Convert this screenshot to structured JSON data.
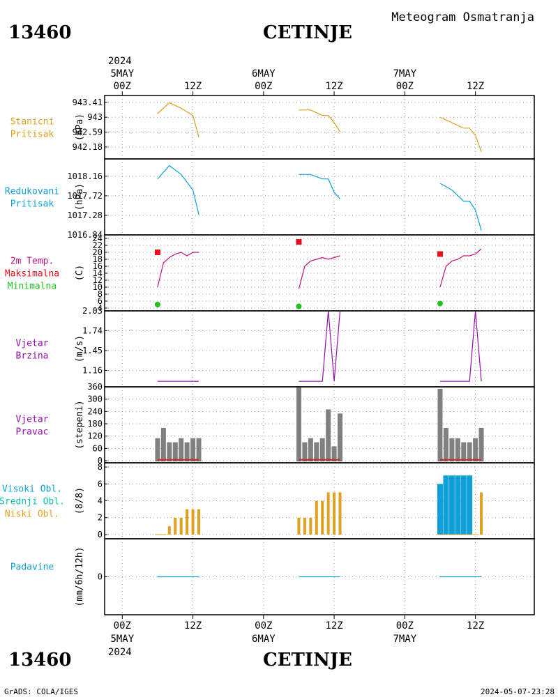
{
  "header": {
    "station_id": "13460",
    "station_name": "CETINJE",
    "chart_title": "Meteogram Osmatranja",
    "footer_left": "GrADS: COLA/IGES",
    "footer_right": "2024-05-07-23:28"
  },
  "time_axis": {
    "top_year": "2024",
    "bottom_year": "2024",
    "days": [
      "5MAY",
      "6MAY",
      "7MAY"
    ],
    "ticks": [
      {
        "hour": 0,
        "label": "00Z"
      },
      {
        "hour": 12,
        "label": "12Z"
      },
      {
        "hour": 24,
        "label": "00Z"
      },
      {
        "hour": 36,
        "label": "12Z"
      },
      {
        "hour": 48,
        "label": "00Z"
      },
      {
        "hour": 60,
        "label": "12Z"
      }
    ],
    "range_hours": [
      -3,
      70
    ]
  },
  "colors": {
    "pressure": "#e0a020",
    "reduced": "#10a0d8",
    "temp": "#c0107a",
    "tmax": "#e8101c",
    "tmin": "#20c020",
    "wind": "#9010a8",
    "winddir_bar": "#808080",
    "winddir_line": "#c82020",
    "high_cloud": "#10a0d8",
    "mid_cloud": "#10c0b0",
    "low_cloud": "#e0a020",
    "precip": "#10a0c8",
    "label_wind": "#9010a8",
    "label_high": "#10a0d8",
    "label_mid": "#10c0b0"
  },
  "chart_data": [
    {
      "type": "line",
      "panel": "station_pressure",
      "labels": [
        "Stanicni",
        "Pritisak"
      ],
      "ylabel": "(hPa)",
      "yticks": [
        942.18,
        942.59,
        943,
        943.41
      ],
      "ylim": [
        941.85,
        943.6
      ],
      "x": [
        6,
        8,
        10,
        12,
        13,
        30,
        32,
        34,
        35,
        36,
        37,
        54,
        56,
        58,
        59,
        60,
        61
      ],
      "values": [
        943.1,
        943.4,
        943.25,
        943.05,
        942.45,
        943.2,
        943.2,
        943.05,
        943.05,
        942.85,
        942.6,
        943,
        942.85,
        942.7,
        942.7,
        942.5,
        942.05
      ],
      "segments": [
        5,
        6,
        6
      ]
    },
    {
      "type": "line",
      "panel": "reduced_pressure",
      "labels": [
        "Redukovani",
        "Pritisak"
      ],
      "ylabel": "(hPa)",
      "yticks": [
        1016.84,
        1017.28,
        1017.72,
        1018.16
      ],
      "ylim": [
        1016.84,
        1018.55
      ],
      "x": [
        6,
        8,
        10,
        12,
        13,
        30,
        32,
        34,
        35,
        36,
        37,
        54,
        56,
        58,
        59,
        60,
        61
      ],
      "values": [
        1018.1,
        1018.4,
        1018.2,
        1017.85,
        1017.3,
        1018.2,
        1018.2,
        1018.1,
        1018.1,
        1017.8,
        1017.65,
        1018,
        1017.85,
        1017.6,
        1017.6,
        1017.4,
        1016.94
      ],
      "segments": [
        5,
        6,
        6
      ]
    },
    {
      "type": "line",
      "panel": "temperature",
      "labels": [
        "2m Temp.",
        "Maksimalna",
        "Minimalna"
      ],
      "ylabel": "(C)",
      "yticks": [
        4,
        6,
        8,
        10,
        12,
        14,
        16,
        18,
        20,
        22,
        24
      ],
      "ylim": [
        3.2,
        25
      ],
      "x": [
        6,
        7,
        8,
        9,
        10,
        11,
        12,
        13,
        30,
        31,
        32,
        33,
        34,
        35,
        36,
        37,
        54,
        55,
        56,
        57,
        58,
        59,
        60,
        61
      ],
      "values": [
        10,
        17,
        18.5,
        19.5,
        20,
        19,
        20,
        20,
        9.5,
        16,
        17.5,
        18,
        18.5,
        18,
        18.5,
        19,
        10,
        16,
        17.5,
        18,
        19,
        19,
        19.5,
        21
      ],
      "segments": [
        8,
        8,
        8
      ],
      "tmax": [
        {
          "x": 6,
          "value": 20
        },
        {
          "x": 30,
          "value": 23
        },
        {
          "x": 54,
          "value": 19.5
        }
      ],
      "tmin": [
        {
          "x": 6,
          "value": 5
        },
        {
          "x": 30,
          "value": 4.5
        },
        {
          "x": 54,
          "value": 5.3
        }
      ]
    },
    {
      "type": "line",
      "panel": "wind_speed",
      "labels": [
        "Vjetar",
        "Brzina"
      ],
      "ylabel": "(m/s)",
      "yticks": [
        1.16,
        1.45,
        1.74,
        2.03
      ],
      "ylim": [
        0.92,
        2.03
      ],
      "x": [
        6,
        13,
        30,
        34,
        35,
        36,
        37,
        54,
        59,
        60,
        61
      ],
      "values": [
        1.0,
        1.0,
        1.0,
        1.0,
        2.03,
        1.0,
        2.03,
        1.0,
        1.0,
        2.03,
        1.0
      ],
      "segments": [
        2,
        5,
        4
      ]
    },
    {
      "type": "bar",
      "panel": "wind_direction",
      "labels": [
        "Vjetar",
        "Pravac"
      ],
      "ylabel": "(stepeni)",
      "yticks": [
        0,
        60,
        120,
        180,
        240,
        300,
        360
      ],
      "ylim": [
        -10,
        360
      ],
      "x": [
        6,
        7,
        8,
        9,
        10,
        11,
        12,
        13,
        30,
        31,
        32,
        33,
        34,
        35,
        36,
        37,
        54,
        55,
        56,
        57,
        58,
        59,
        60,
        61
      ],
      "values": [
        110,
        160,
        90,
        90,
        110,
        90,
        110,
        110,
        360,
        90,
        110,
        90,
        110,
        250,
        70,
        230,
        350,
        160,
        110,
        110,
        90,
        90,
        110,
        160
      ],
      "baseline": 5
    },
    {
      "type": "bar",
      "panel": "clouds",
      "labels": [
        "Visoki Obl.",
        "Srednji Obl.",
        "Niski Obl."
      ],
      "ylabel": "(8/8)",
      "yticks": [
        0,
        2,
        4,
        6,
        8
      ],
      "ylim": [
        -0.5,
        8.5
      ],
      "series": [
        {
          "key": "high_cloud",
          "x": [
            54,
            55,
            56,
            57,
            58,
            59
          ],
          "values": [
            6,
            7,
            7,
            7,
            7,
            7
          ]
        },
        {
          "key": "mid_cloud",
          "x": [
            61
          ],
          "values": [
            2
          ]
        },
        {
          "key": "low_cloud",
          "x": [
            6,
            7,
            8,
            9,
            10,
            11,
            12,
            13,
            30,
            31,
            32,
            33,
            34,
            35,
            36,
            37,
            54,
            55,
            56,
            57,
            58,
            59,
            60,
            61
          ],
          "values": [
            0,
            0,
            1,
            2,
            2,
            3,
            3,
            3,
            2,
            2,
            2,
            4,
            4,
            5,
            5,
            5,
            0,
            0,
            0,
            0,
            0,
            0,
            0,
            5
          ]
        }
      ]
    },
    {
      "type": "line",
      "panel": "precipitation",
      "labels": [
        "Padavine"
      ],
      "ylabel": "(mm/6h/12h)",
      "yticks": [
        0
      ],
      "ylim": [
        -1,
        1
      ],
      "x": [
        6,
        13,
        30,
        37,
        54,
        61
      ],
      "values": [
        0,
        0,
        0,
        0,
        0,
        0
      ],
      "segments": [
        2,
        2,
        2
      ]
    }
  ]
}
